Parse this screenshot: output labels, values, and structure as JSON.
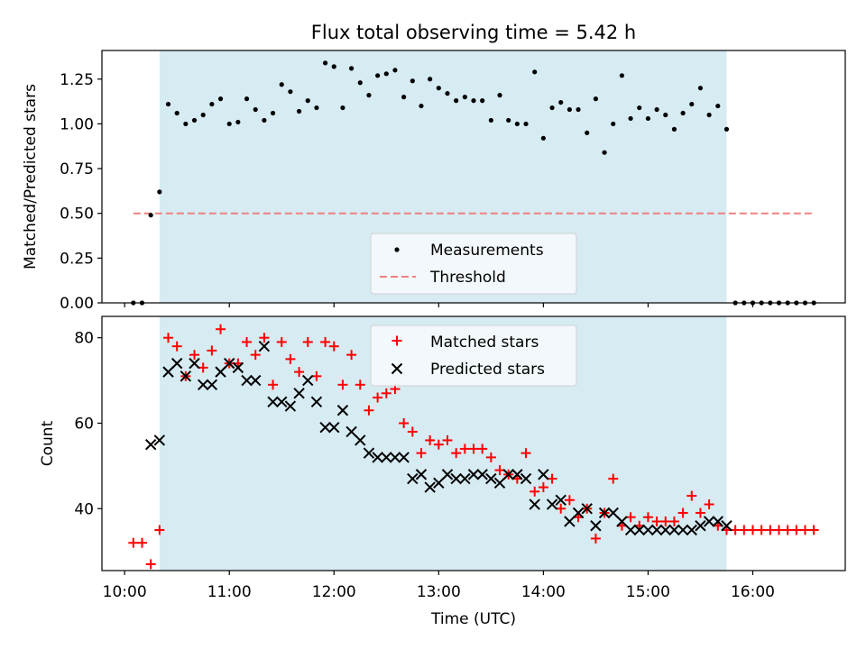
{
  "title": "Flux total observing time = 5.42 h",
  "xlabel": "Time (UTC)",
  "colors": {
    "measurements": "#000000",
    "threshold": "#f08080",
    "matched": "#ff0000",
    "predicted": "#000000",
    "observing_window": "#add8e6"
  },
  "chart_data": [
    {
      "type": "scatter",
      "ylabel": "Matched/Predicted stars",
      "ylim": [
        0,
        1.41
      ],
      "xlim": [
        "09:47",
        "16:53"
      ],
      "yticks": [
        0.0,
        0.25,
        0.5,
        0.75,
        1.0,
        1.25
      ],
      "ytick_labels": [
        "0.00",
        "0.25",
        "0.50",
        "0.75",
        "1.00",
        "1.25"
      ],
      "observing_window": [
        "10:20",
        "15:45"
      ],
      "threshold": {
        "name": "Threshold",
        "value": 0.5,
        "x_range": [
          "10:05",
          "16:35"
        ],
        "style": "dashed"
      },
      "legend": {
        "location": "lower center",
        "entries": [
          "Measurements",
          "Threshold"
        ]
      },
      "series": [
        {
          "name": "Measurements",
          "marker": "dot",
          "x": [
            "10:05",
            "10:10",
            "10:15",
            "10:20",
            "10:25",
            "10:30",
            "10:35",
            "10:40",
            "10:45",
            "10:50",
            "10:55",
            "11:00",
            "11:05",
            "11:10",
            "11:15",
            "11:20",
            "11:25",
            "11:30",
            "11:35",
            "11:40",
            "11:45",
            "11:50",
            "11:55",
            "12:00",
            "12:05",
            "12:10",
            "12:15",
            "12:20",
            "12:25",
            "12:30",
            "12:35",
            "12:40",
            "12:45",
            "12:50",
            "12:55",
            "13:00",
            "13:05",
            "13:10",
            "13:15",
            "13:20",
            "13:25",
            "13:30",
            "13:35",
            "13:40",
            "13:45",
            "13:50",
            "13:55",
            "14:00",
            "14:05",
            "14:10",
            "14:15",
            "14:20",
            "14:25",
            "14:30",
            "14:35",
            "14:40",
            "14:45",
            "14:50",
            "14:55",
            "15:00",
            "15:05",
            "15:10",
            "15:15",
            "15:20",
            "15:25",
            "15:30",
            "15:35",
            "15:40",
            "15:45",
            "15:50",
            "15:55",
            "16:00",
            "16:05",
            "16:10",
            "16:15",
            "16:20",
            "16:25",
            "16:30",
            "16:35"
          ],
          "y": [
            0,
            0,
            0.49,
            0.62,
            1.11,
            1.06,
            1.0,
            1.02,
            1.05,
            1.11,
            1.14,
            1.0,
            1.01,
            1.14,
            1.08,
            1.02,
            1.06,
            1.22,
            1.18,
            1.07,
            1.13,
            1.09,
            1.34,
            1.32,
            1.09,
            1.31,
            1.23,
            1.16,
            1.27,
            1.28,
            1.3,
            1.15,
            1.24,
            1.1,
            1.25,
            1.2,
            1.17,
            1.13,
            1.15,
            1.13,
            1.13,
            1.02,
            1.16,
            1.02,
            1.0,
            1.0,
            1.29,
            0.92,
            1.09,
            1.12,
            1.08,
            1.08,
            0.95,
            1.14,
            0.84,
            1.0,
            1.27,
            1.03,
            1.09,
            1.03,
            1.08,
            1.05,
            0.97,
            1.06,
            1.11,
            1.2,
            1.05,
            1.1,
            0.97,
            0,
            0,
            0,
            0,
            0,
            0,
            0,
            0,
            0,
            0
          ]
        }
      ]
    },
    {
      "type": "scatter",
      "ylabel": "Count",
      "ylim": [
        25.5,
        85
      ],
      "xlim": [
        "09:47",
        "16:53"
      ],
      "yticks": [
        40,
        60,
        80
      ],
      "ytick_labels": [
        "40",
        "60",
        "80"
      ],
      "xtick_labels": [
        "10:00",
        "11:00",
        "12:00",
        "13:00",
        "14:00",
        "15:00",
        "16:00"
      ],
      "observing_window": [
        "10:20",
        "15:45"
      ],
      "legend": {
        "location": "upper center",
        "entries": [
          "Matched stars",
          "Predicted stars"
        ]
      },
      "series": [
        {
          "name": "Matched stars",
          "marker": "plus",
          "x": [
            "10:05",
            "10:10",
            "10:15",
            "10:20",
            "10:25",
            "10:30",
            "10:35",
            "10:40",
            "10:45",
            "10:50",
            "10:55",
            "11:00",
            "11:05",
            "11:10",
            "11:15",
            "11:20",
            "11:25",
            "11:30",
            "11:35",
            "11:40",
            "11:45",
            "11:50",
            "11:55",
            "12:00",
            "12:05",
            "12:10",
            "12:15",
            "12:20",
            "12:25",
            "12:30",
            "12:35",
            "12:40",
            "12:45",
            "12:50",
            "12:55",
            "13:00",
            "13:05",
            "13:10",
            "13:15",
            "13:20",
            "13:25",
            "13:30",
            "13:35",
            "13:40",
            "13:45",
            "13:50",
            "13:55",
            "14:00",
            "14:05",
            "14:10",
            "14:15",
            "14:20",
            "14:25",
            "14:30",
            "14:35",
            "14:40",
            "14:45",
            "14:50",
            "14:55",
            "15:00",
            "15:05",
            "15:10",
            "15:15",
            "15:20",
            "15:25",
            "15:30",
            "15:35",
            "15:40",
            "15:45",
            "15:50",
            "15:55",
            "16:00",
            "16:05",
            "16:10",
            "16:15",
            "16:20",
            "16:25",
            "16:30",
            "16:35"
          ],
          "y": [
            32,
            32,
            27,
            35,
            80,
            78,
            71,
            76,
            73,
            77,
            82,
            74,
            74,
            79,
            76,
            80,
            69,
            79,
            75,
            72,
            79,
            71,
            79,
            78,
            69,
            76,
            69,
            63,
            66,
            67,
            68,
            60,
            58,
            53,
            56,
            55,
            56,
            53,
            54,
            54,
            54,
            52,
            49,
            48,
            47,
            53,
            44,
            45,
            47,
            40,
            42,
            38,
            40,
            33,
            39,
            47,
            36,
            38,
            36,
            38,
            37,
            37,
            37,
            39,
            43,
            39,
            41,
            36,
            35,
            35,
            35,
            35,
            35,
            35,
            35,
            35,
            35,
            35,
            35
          ]
        },
        {
          "name": "Predicted stars",
          "marker": "x",
          "x": [
            "10:15",
            "10:20",
            "10:25",
            "10:30",
            "10:35",
            "10:40",
            "10:45",
            "10:50",
            "10:55",
            "11:00",
            "11:05",
            "11:10",
            "11:15",
            "11:20",
            "11:25",
            "11:30",
            "11:35",
            "11:40",
            "11:45",
            "11:50",
            "11:55",
            "12:00",
            "12:05",
            "12:10",
            "12:15",
            "12:20",
            "12:25",
            "12:30",
            "12:35",
            "12:40",
            "12:45",
            "12:50",
            "12:55",
            "13:00",
            "13:05",
            "13:10",
            "13:15",
            "13:20",
            "13:25",
            "13:30",
            "13:35",
            "13:40",
            "13:45",
            "13:50",
            "13:55",
            "14:00",
            "14:05",
            "14:10",
            "14:15",
            "14:20",
            "14:25",
            "14:30",
            "14:35",
            "14:40",
            "14:45",
            "14:50",
            "14:55",
            "15:00",
            "15:05",
            "15:10",
            "15:15",
            "15:20",
            "15:25",
            "15:30",
            "15:35",
            "15:40",
            "15:45"
          ],
          "y": [
            55,
            56,
            72,
            74,
            71,
            74,
            69,
            69,
            72,
            74,
            73,
            70,
            70,
            78,
            65,
            65,
            64,
            67,
            70,
            65,
            59,
            59,
            63,
            58,
            56,
            53,
            52,
            52,
            52,
            52,
            47,
            48,
            45,
            46,
            48,
            47,
            47,
            48,
            48,
            47,
            46,
            48,
            48,
            47,
            41,
            48,
            41,
            42,
            37,
            39,
            40,
            36,
            39,
            39,
            37,
            35,
            35,
            35,
            35,
            35,
            35,
            35,
            35,
            36,
            37,
            37,
            36
          ]
        }
      ]
    }
  ]
}
